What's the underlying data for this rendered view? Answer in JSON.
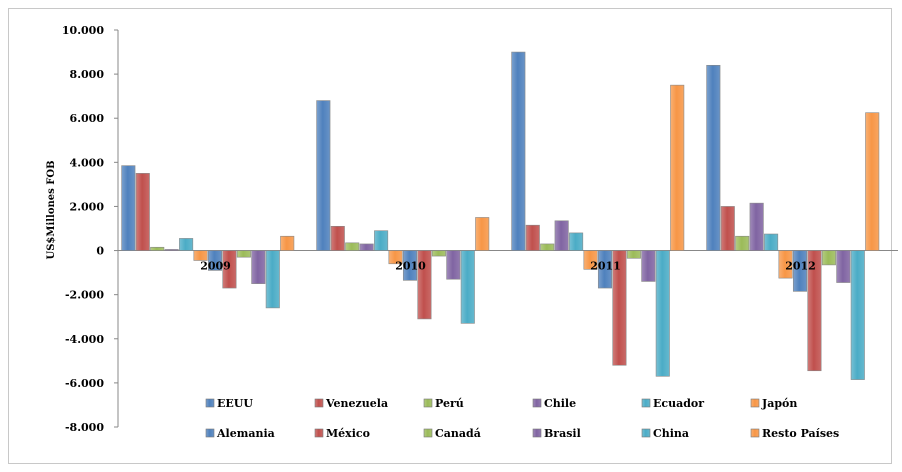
{
  "chart_data": {
    "type": "bar",
    "ylabel": "US$Millones FOB",
    "ylim": [
      -8000,
      10000
    ],
    "ytick_step": 2000,
    "ytick_labels": [
      "-8.000",
      "-6.000",
      "-4.000",
      "-2.000",
      "0",
      "2.000",
      "4.000",
      "6.000",
      "8.000",
      "10.000"
    ],
    "categories": [
      "2009",
      "2010",
      "2011",
      "2012"
    ],
    "grid": false,
    "legend_position": "bottom",
    "series": [
      {
        "name": "EEUU",
        "color": "#4f81bd",
        "values": [
          3850,
          6800,
          9000,
          8400
        ]
      },
      {
        "name": "Venezuela",
        "color": "#c0504d",
        "values": [
          3500,
          1100,
          1150,
          2000
        ]
      },
      {
        "name": "Perú",
        "color": "#9bbb59",
        "values": [
          150,
          350,
          300,
          650
        ]
      },
      {
        "name": "Chile",
        "color": "#8064a2",
        "values": [
          50,
          300,
          1350,
          2150
        ]
      },
      {
        "name": "Ecuador",
        "color": "#4bacc6",
        "values": [
          550,
          900,
          800,
          750
        ]
      },
      {
        "name": "Japón",
        "color": "#f79646",
        "values": [
          -450,
          -600,
          -850,
          -1250
        ]
      },
      {
        "name": "Alemania",
        "color": "#4f81bd",
        "values": [
          -900,
          -1350,
          -1700,
          -1850
        ]
      },
      {
        "name": "México",
        "color": "#c0504d",
        "values": [
          -1700,
          -3100,
          -5200,
          -5450
        ]
      },
      {
        "name": "Canadá",
        "color": "#9bbb59",
        "values": [
          -300,
          -250,
          -350,
          -650
        ]
      },
      {
        "name": "Brasil",
        "color": "#8064a2",
        "values": [
          -1500,
          -1300,
          -1400,
          -1450
        ]
      },
      {
        "name": "China",
        "color": "#4bacc6",
        "values": [
          -2600,
          -3300,
          -5700,
          -5850
        ]
      },
      {
        "name": "Resto Países",
        "color": "#f79646",
        "values": [
          650,
          1500,
          7500,
          6250
        ]
      }
    ]
  }
}
